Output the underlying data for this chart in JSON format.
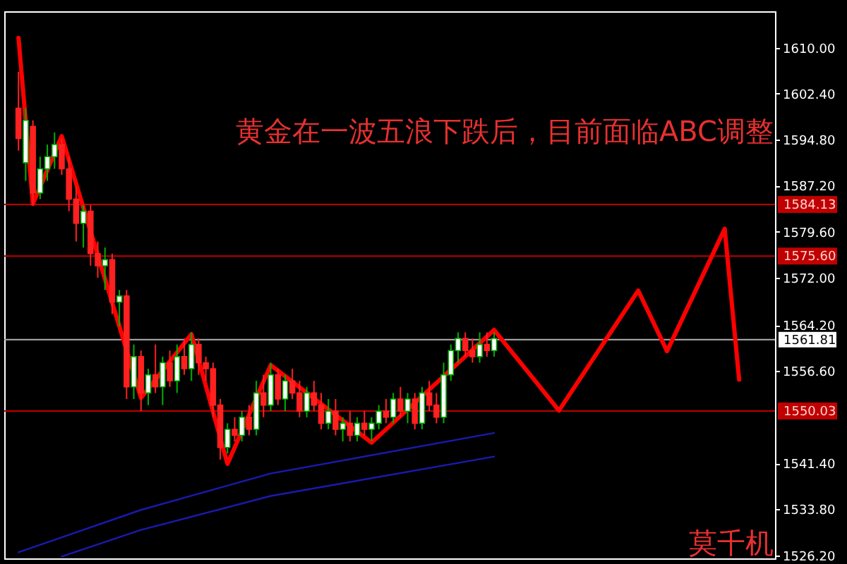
{
  "chart_data": {
    "type": "candlestick",
    "annotations": [
      "黄金在一波五浪下跌后，目前面临ABC调整",
      "莫千机"
    ],
    "categories": [
      null,
      null,
      null,
      null,
      null,
      null,
      null,
      null,
      null,
      null,
      null,
      null,
      null,
      null,
      null,
      null,
      null,
      null,
      null,
      null,
      null,
      null,
      null,
      null,
      null,
      null,
      null,
      null,
      null,
      null,
      null,
      null,
      null,
      null,
      null,
      null,
      null,
      null,
      null,
      null,
      null,
      null,
      null,
      null,
      null,
      null,
      null,
      null,
      null,
      null,
      null,
      null,
      null,
      null,
      null,
      null,
      null,
      null,
      null,
      null,
      null,
      null,
      null,
      null,
      null,
      null,
      null,
      null,
      null,
      null,
      null,
      null,
      null,
      null,
      null,
      null,
      null,
      null,
      null,
      null,
      null,
      null,
      null,
      null,
      null,
      null,
      null,
      null,
      null,
      null,
      null,
      null,
      null,
      null,
      null,
      null,
      null,
      null,
      null,
      null,
      null
    ],
    "ohlc": [
      [
        1600,
        1606,
        1593,
        1595
      ],
      [
        1591,
        1600,
        1588,
        1598
      ],
      [
        1597,
        1598,
        1584,
        1586
      ],
      [
        1586,
        1592,
        1585,
        1590
      ],
      [
        1590,
        1594,
        1588,
        1592
      ],
      [
        1592,
        1596,
        1590,
        1594
      ],
      [
        1594,
        1595,
        1589,
        1590
      ],
      [
        1590,
        1592,
        1583,
        1585
      ],
      [
        1585,
        1587,
        1578,
        1581
      ],
      [
        1581,
        1584,
        1577,
        1583
      ],
      [
        1583,
        1584,
        1574,
        1576
      ],
      [
        1576,
        1578,
        1572,
        1574
      ],
      [
        1574,
        1577,
        1570,
        1575
      ],
      [
        1575,
        1576,
        1566,
        1568
      ],
      [
        1568,
        1570,
        1564,
        1569
      ],
      [
        1569,
        1570,
        1552,
        1554
      ],
      [
        1554,
        1561,
        1552,
        1559
      ],
      [
        1559,
        1560,
        1550,
        1553
      ],
      [
        1553,
        1557,
        1551,
        1556
      ],
      [
        1556,
        1561,
        1553,
        1554
      ],
      [
        1554,
        1559,
        1551,
        1558
      ],
      [
        1558,
        1560,
        1554,
        1555
      ],
      [
        1555,
        1561,
        1553,
        1559
      ],
      [
        1559,
        1562,
        1556,
        1557
      ],
      [
        1557,
        1563,
        1555,
        1561
      ],
      [
        1561,
        1562,
        1556,
        1558
      ],
      [
        1558,
        1559,
        1555,
        1557
      ],
      [
        1557,
        1558,
        1549,
        1551
      ],
      [
        1551,
        1552,
        1542,
        1544
      ],
      [
        1544,
        1548,
        1543,
        1547
      ],
      [
        1547,
        1549,
        1545,
        1546
      ],
      [
        1546,
        1550,
        1545,
        1549
      ],
      [
        1549,
        1551,
        1546,
        1547
      ],
      [
        1547,
        1555,
        1546,
        1553
      ],
      [
        1553,
        1556,
        1549,
        1551
      ],
      [
        1551,
        1558,
        1550,
        1556
      ],
      [
        1556,
        1557,
        1551,
        1552
      ],
      [
        1552,
        1556,
        1550,
        1555
      ],
      [
        1555,
        1557,
        1552,
        1553
      ],
      [
        1553,
        1555,
        1549,
        1550
      ],
      [
        1550,
        1554,
        1549,
        1553
      ],
      [
        1553,
        1555,
        1550,
        1551
      ],
      [
        1551,
        1553,
        1547,
        1548
      ],
      [
        1548,
        1552,
        1547,
        1550
      ],
      [
        1550,
        1552,
        1546,
        1547
      ],
      [
        1547,
        1549,
        1545,
        1548
      ],
      [
        1548,
        1550,
        1545,
        1546
      ],
      [
        1546,
        1549,
        1545,
        1548
      ],
      [
        1548,
        1550,
        1546,
        1547
      ],
      [
        1547,
        1549,
        1545,
        1548
      ],
      [
        1548,
        1551,
        1547,
        1550
      ],
      [
        1550,
        1552,
        1548,
        1549
      ],
      [
        1549,
        1553,
        1548,
        1552
      ],
      [
        1552,
        1554,
        1549,
        1550
      ],
      [
        1550,
        1553,
        1548,
        1552
      ],
      [
        1552,
        1553,
        1547,
        1548
      ],
      [
        1548,
        1554,
        1547,
        1553
      ],
      [
        1553,
        1555,
        1550,
        1551
      ],
      [
        1551,
        1553,
        1548,
        1549
      ],
      [
        1549,
        1558,
        1548,
        1556
      ],
      [
        1556,
        1561,
        1555,
        1560
      ],
      [
        1560,
        1563,
        1558,
        1562
      ],
      [
        1562,
        1563,
        1559,
        1560
      ],
      [
        1560,
        1562,
        1558,
        1559
      ],
      [
        1559,
        1563,
        1558,
        1561
      ],
      [
        1561,
        1563,
        1559,
        1560
      ],
      [
        1560,
        1563,
        1559,
        1562
      ],
      null,
      null,
      null,
      null,
      null,
      null,
      null,
      null,
      null,
      null,
      null,
      null,
      null,
      null,
      null,
      null,
      null,
      null,
      null,
      null,
      null,
      null,
      null,
      null,
      null,
      null,
      null,
      null,
      null,
      null,
      null,
      null,
      null,
      null
    ],
    "series": [
      {
        "type": "line",
        "color": "#ff0000",
        "values": [
          1611.6,
          null,
          1584.2,
          null,
          null,
          null,
          1595.4,
          null,
          null,
          null,
          null,
          null,
          null,
          null,
          null,
          null,
          null,
          1552.2,
          null,
          null,
          null,
          null,
          null,
          null,
          1562.7,
          null,
          null,
          null,
          null,
          1541.3,
          null,
          null,
          null,
          null,
          null,
          1557.6,
          null,
          null,
          null,
          null,
          null,
          null,
          null,
          null,
          null,
          null,
          null,
          null,
          null,
          1544.8,
          null,
          null,
          null,
          null,
          null,
          null,
          null,
          null,
          null,
          null,
          null,
          null,
          null,
          null,
          null,
          null,
          1563.4,
          null,
          null,
          null,
          null,
          null,
          null,
          null,
          null,
          1550.1,
          null,
          null,
          null,
          null,
          null,
          null,
          null,
          null,
          null,
          null,
          1569.9,
          null,
          null,
          null,
          1559.9,
          null,
          null,
          null,
          null,
          null,
          null,
          null,
          1580.1,
          null,
          1555.2
        ]
      },
      {
        "type": "line",
        "color": "#1a1ab0",
        "values": [
          1526.7,
          null,
          null,
          null,
          null,
          null,
          null,
          null,
          null,
          null,
          null,
          null,
          null,
          null,
          null,
          null,
          null,
          1533.7,
          null,
          null,
          null,
          null,
          null,
          null,
          null,
          null,
          null,
          null,
          null,
          null,
          null,
          null,
          null,
          null,
          null,
          1539.7,
          null,
          null,
          null,
          null,
          null,
          null,
          null,
          null,
          null,
          null,
          null,
          null,
          null,
          null,
          null,
          null,
          null,
          null,
          null,
          null,
          null,
          null,
          null,
          null,
          null,
          null,
          null,
          null,
          null,
          null,
          1546.4,
          null,
          null,
          null,
          null,
          null,
          null,
          null,
          null,
          null,
          null,
          null,
          null,
          null,
          null,
          null,
          null,
          null,
          null,
          null,
          null,
          null,
          null,
          null,
          null,
          null,
          null,
          null,
          null,
          null,
          null,
          null,
          null,
          null,
          null
        ]
      },
      {
        "type": "line",
        "color": "#1a1ab0",
        "values": [
          null,
          null,
          null,
          null,
          null,
          null,
          1526.0,
          null,
          null,
          null,
          null,
          null,
          null,
          null,
          null,
          null,
          null,
          1530.4,
          null,
          null,
          null,
          null,
          null,
          null,
          null,
          null,
          null,
          null,
          null,
          null,
          null,
          null,
          null,
          null,
          null,
          1536.0,
          null,
          null,
          null,
          null,
          null,
          null,
          null,
          null,
          null,
          null,
          null,
          null,
          null,
          null,
          null,
          null,
          null,
          null,
          null,
          null,
          null,
          null,
          null,
          null,
          null,
          null,
          null,
          null,
          null,
          null,
          1542.5,
          null,
          null,
          null,
          null,
          null,
          null,
          null,
          null,
          null,
          null,
          null,
          null,
          null,
          null,
          null,
          null,
          null,
          null,
          null,
          null,
          null,
          null,
          null,
          null,
          null,
          null,
          null,
          null,
          null,
          null,
          null,
          null,
          null,
          null
        ]
      }
    ],
    "ylim": [
      1525.7,
      1616
    ],
    "yticks": [
      {
        "value": 1526.2,
        "label": "1526.20"
      },
      {
        "value": 1533.8,
        "label": "1533.80"
      },
      {
        "value": 1541.4,
        "label": "1541.40"
      },
      {
        "value": 1556.6,
        "label": "1556.60"
      },
      {
        "value": 1564.2,
        "label": "1564.20"
      },
      {
        "value": 1572,
        "label": "1572.00"
      },
      {
        "value": 1579.6,
        "label": "1579.60"
      },
      {
        "value": 1587.2,
        "label": "1587.20"
      },
      {
        "value": 1594.8,
        "label": "1594.80"
      },
      {
        "value": 1602.4,
        "label": "1602.40"
      },
      {
        "value": 1610,
        "label": "1610.00"
      }
    ],
    "ref_lines": [
      {
        "axis": "y",
        "value": 1584.13,
        "label": "1584.13",
        "color": "#c00000"
      },
      {
        "axis": "y",
        "value": 1575.6,
        "label": "1575.60",
        "color": "#c00000"
      },
      {
        "axis": "y",
        "value": 1561.81,
        "label": "1561.81",
        "color": "#b0b0b0"
      },
      {
        "axis": "y",
        "value": 1550.03,
        "label": "1550.03",
        "color": "#c00000"
      }
    ]
  }
}
